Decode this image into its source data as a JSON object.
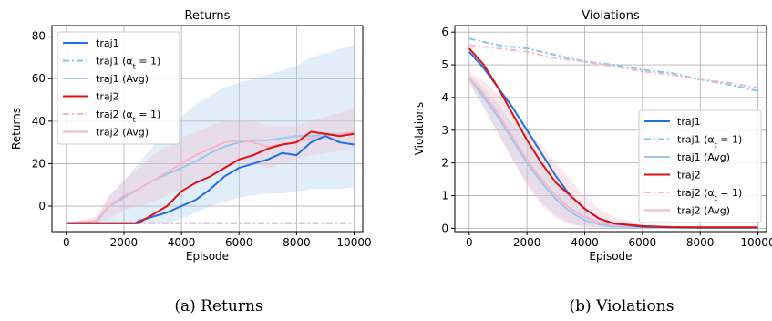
{
  "chart_data": [
    {
      "type": "line",
      "title": "Returns",
      "xlabel": "Episode",
      "ylabel": "Returns",
      "xlim": [
        -500,
        10300
      ],
      "ylim": [
        -12,
        85
      ],
      "xticks": [
        0,
        2000,
        4000,
        6000,
        8000,
        10000
      ],
      "yticks": [
        0,
        20,
        40,
        60,
        80
      ],
      "grid": true,
      "legend": {
        "position": "top-left",
        "entries": [
          "traj1",
          "traj1 (α_t = 1)",
          "traj1 (Avg)",
          "traj2",
          "traj2 (α_t = 1)",
          "traj2 (Avg)"
        ]
      },
      "caption": "(a) Returns",
      "series": [
        {
          "name": "traj1",
          "color": "#1f6fe6",
          "style": "solid",
          "width": 2,
          "x": [
            0,
            2400,
            2500,
            3000,
            3500,
            4000,
            4500,
            5000,
            5500,
            6000,
            6500,
            7000,
            7500,
            8000,
            8500,
            9000,
            9500,
            10000
          ],
          "y": [
            -8,
            -8,
            -7,
            -5,
            -3,
            0,
            3,
            8,
            14,
            18,
            20,
            22,
            25,
            24,
            30,
            33,
            30,
            29
          ]
        },
        {
          "name": "traj1 (α_t = 1)",
          "color": "#7fcde6",
          "style": "dashdot",
          "width": 2,
          "x": [
            0,
            10000
          ],
          "y": [
            -8,
            -8
          ]
        },
        {
          "name": "traj1 (Avg)",
          "color": "#9cc8f0",
          "style": "solid",
          "width": 2,
          "x": [
            0,
            1000,
            1500,
            2000,
            2500,
            3000,
            3500,
            4000,
            4500,
            5000,
            5500,
            6000,
            6500,
            7000,
            7500,
            8000,
            8500,
            9000,
            9500,
            10000
          ],
          "y": [
            -8,
            -8,
            0,
            4,
            8,
            12,
            15,
            18,
            21,
            25,
            28,
            30,
            31,
            31,
            32,
            33,
            33,
            34,
            34,
            34
          ],
          "band_upper": [
            -8,
            -8,
            5,
            12,
            20,
            28,
            35,
            42,
            48,
            52,
            56,
            58,
            60,
            62,
            64,
            66,
            70,
            72,
            74,
            76
          ],
          "band_lower": [
            -8,
            -8,
            -8,
            -8,
            -8,
            -8,
            -8,
            -6,
            -3,
            0,
            2,
            4,
            5,
            6,
            6,
            7,
            8,
            8,
            8,
            9
          ]
        },
        {
          "name": "traj2",
          "color": "#e01111",
          "style": "solid",
          "width": 2,
          "x": [
            0,
            1500,
            2500,
            3000,
            3500,
            4000,
            4500,
            5000,
            5500,
            6000,
            6500,
            7000,
            7500,
            8000,
            8500,
            9000,
            9500,
            10000
          ],
          "y": [
            -8,
            -8,
            -8,
            -4,
            0,
            7,
            11,
            14,
            18,
            22,
            24,
            27,
            29,
            30,
            35,
            34,
            33,
            34
          ]
        },
        {
          "name": "traj2 (α_t = 1)",
          "color": "#f6b6cf",
          "style": "dashdot",
          "width": 2,
          "x": [
            0,
            10000
          ],
          "y": [
            -8,
            -8
          ]
        },
        {
          "name": "traj2 (Avg)",
          "color": "#f6b6c6",
          "style": "solid",
          "width": 2,
          "x": [
            0,
            1000,
            1500,
            2000,
            2500,
            3000,
            3500,
            4000,
            4500,
            5000,
            5500,
            6000,
            6500,
            7000,
            7500,
            8000,
            8500,
            9000,
            9500,
            10000
          ],
          "y": [
            -8,
            -7,
            0,
            5,
            8,
            12,
            16,
            20,
            24,
            27,
            30,
            31,
            30,
            28,
            29,
            30,
            32,
            33,
            34,
            35
          ],
          "band_upper": [
            -8,
            -5,
            5,
            12,
            18,
            24,
            28,
            32,
            35,
            38,
            40,
            40,
            40,
            38,
            38,
            38,
            40,
            42,
            44,
            46
          ],
          "band_lower": [
            -8,
            -8,
            -6,
            -2,
            0,
            2,
            5,
            8,
            12,
            15,
            18,
            20,
            20,
            18,
            20,
            22,
            24,
            25,
            26,
            26
          ]
        }
      ]
    },
    {
      "type": "line",
      "title": "Violations",
      "xlabel": "Episode",
      "ylabel": "Violations",
      "xlim": [
        -500,
        10300
      ],
      "ylim": [
        -0.1,
        6.2
      ],
      "xticks": [
        0,
        2000,
        4000,
        6000,
        8000,
        10000
      ],
      "yticks": [
        0,
        1,
        2,
        3,
        4,
        5,
        6
      ],
      "grid": true,
      "legend": {
        "position": "bottom-right",
        "entries": [
          "traj1",
          "traj1 (α_t = 1)",
          "traj1 (Avg)",
          "traj2",
          "traj2 (α_t = 1)",
          "traj2 (Avg)"
        ]
      },
      "caption": "(b) Violations",
      "series": [
        {
          "name": "traj1",
          "color": "#1f6fe6",
          "style": "solid",
          "width": 2,
          "x": [
            0,
            500,
            1000,
            1500,
            2000,
            2500,
            3000,
            3500,
            4000,
            4500,
            5000,
            6000,
            7000,
            8000,
            9000,
            10000
          ],
          "y": [
            5.4,
            4.9,
            4.3,
            3.7,
            3.0,
            2.3,
            1.6,
            1.0,
            0.6,
            0.3,
            0.15,
            0.05,
            0.03,
            0.02,
            0.02,
            0.02
          ]
        },
        {
          "name": "traj1 (α_t = 1)",
          "color": "#7fcde6",
          "style": "dashdot",
          "width": 2,
          "x": [
            0,
            1000,
            2000,
            3000,
            4000,
            5000,
            6000,
            7000,
            8000,
            9000,
            10000
          ],
          "y": [
            5.8,
            5.6,
            5.5,
            5.3,
            5.1,
            5.0,
            4.85,
            4.75,
            4.55,
            4.4,
            4.2
          ]
        },
        {
          "name": "traj1 (Avg)",
          "color": "#9cc8f0",
          "style": "solid",
          "width": 2,
          "x": [
            0,
            500,
            1000,
            1500,
            2000,
            2500,
            3000,
            3500,
            4000,
            4500,
            5000,
            6000,
            7000,
            8000,
            9000,
            10000
          ],
          "y": [
            4.6,
            4.0,
            3.4,
            2.7,
            2.0,
            1.4,
            0.9,
            0.5,
            0.25,
            0.12,
            0.06,
            0.03,
            0.02,
            0.02,
            0.02,
            0.02
          ],
          "band_upper": [
            4.7,
            4.3,
            3.8,
            3.2,
            2.6,
            2.0,
            1.5,
            1.0,
            0.6,
            0.3,
            0.15,
            0.05,
            0.03,
            0.03,
            0.03,
            0.03
          ],
          "band_lower": [
            4.5,
            3.7,
            2.9,
            2.1,
            1.4,
            0.8,
            0.4,
            0.15,
            0.05,
            0.02,
            0.01,
            0.01,
            0.01,
            0.01,
            0.01,
            0.01
          ]
        },
        {
          "name": "traj2",
          "color": "#e01111",
          "style": "solid",
          "width": 2,
          "x": [
            0,
            500,
            1000,
            1500,
            2000,
            2500,
            3000,
            3500,
            4000,
            4500,
            5000,
            6000,
            7000,
            8000,
            9000,
            10000
          ],
          "y": [
            5.5,
            5.0,
            4.3,
            3.5,
            2.7,
            2.0,
            1.4,
            1.0,
            0.6,
            0.3,
            0.15,
            0.07,
            0.04,
            0.03,
            0.03,
            0.03
          ]
        },
        {
          "name": "traj2 (α_t = 1)",
          "color": "#f6b6cf",
          "style": "dashdot",
          "width": 2,
          "x": [
            0,
            1000,
            2000,
            3000,
            4000,
            5000,
            6000,
            7000,
            8000,
            9000,
            10000
          ],
          "y": [
            5.6,
            5.5,
            5.4,
            5.2,
            5.1,
            4.95,
            4.8,
            4.7,
            4.55,
            4.45,
            4.3
          ]
        },
        {
          "name": "traj2 (Avg)",
          "color": "#f6b6c6",
          "style": "solid",
          "width": 2,
          "x": [
            0,
            500,
            1000,
            1500,
            2000,
            2500,
            3000,
            3500,
            4000,
            4500,
            5000,
            6000,
            7000,
            8000,
            9000,
            10000
          ],
          "y": [
            4.6,
            4.1,
            3.5,
            2.8,
            2.1,
            1.5,
            1.0,
            0.6,
            0.35,
            0.18,
            0.1,
            0.05,
            0.03,
            0.03,
            0.03,
            0.03
          ],
          "band_upper": [
            4.8,
            4.5,
            4.1,
            3.6,
            3.0,
            2.5,
            2.0,
            1.5,
            1.0,
            0.6,
            0.35,
            0.1,
            0.05,
            0.05,
            0.05,
            0.05
          ],
          "band_lower": [
            4.4,
            3.7,
            2.9,
            2.1,
            1.3,
            0.7,
            0.3,
            0.1,
            0.03,
            0.01,
            0.01,
            0.01,
            0.01,
            0.01,
            0.01,
            0.01
          ]
        }
      ]
    }
  ]
}
